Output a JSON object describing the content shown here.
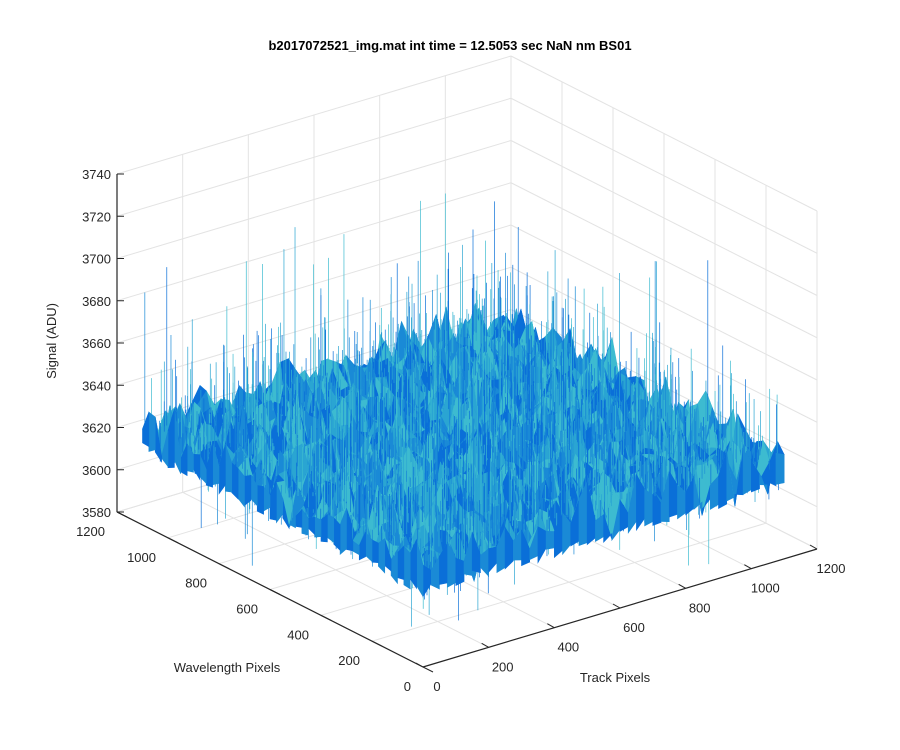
{
  "chart_data": {
    "type": "surface",
    "title": "b2017072521_img.mat int time = 12.5053 sec  NaN nm BS01",
    "xlabel": "Track Pixels",
    "ylabel": "Wavelength Pixels",
    "zlabel": "Signal (ADU)",
    "x_ticks": [
      "0",
      "200",
      "400",
      "600",
      "800",
      "1000",
      "1200"
    ],
    "y_ticks": [
      "0",
      "200",
      "400",
      "600",
      "800",
      "1000",
      "1200"
    ],
    "z_ticks": [
      "3580",
      "3600",
      "3620",
      "3640",
      "3660",
      "3680",
      "3700",
      "3720",
      "3740"
    ],
    "xlim": [
      0,
      1200
    ],
    "ylim": [
      0,
      1200
    ],
    "zlim": [
      3580,
      3740
    ],
    "grid": true,
    "surface": {
      "x_extent": [
        0,
        1100
      ],
      "y_extent": [
        0,
        1100
      ],
      "mean": 3627,
      "noise_low": 3585,
      "noise_high": 3705,
      "colors": [
        "#0a6fd8",
        "#1a8ad6",
        "#2aa5d2",
        "#3dbbd0"
      ]
    }
  }
}
